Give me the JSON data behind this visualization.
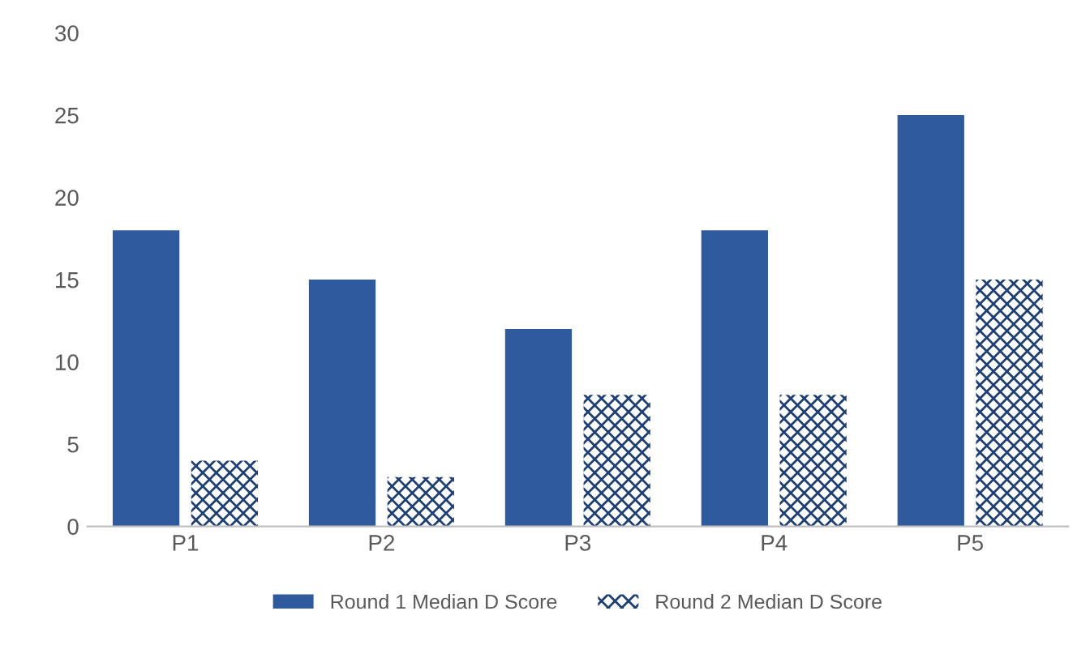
{
  "chart_data": {
    "type": "bar",
    "categories": [
      "P1",
      "P2",
      "P3",
      "P4",
      "P5"
    ],
    "series": [
      {
        "name": "Round 1 Median D Score",
        "color": "#2f5b9e",
        "values": [
          18,
          15,
          12,
          18,
          25
        ]
      },
      {
        "name": "Round 2 Median D Score",
        "color": "#1f3f73",
        "values": [
          4,
          3,
          8,
          8,
          15
        ]
      }
    ],
    "ylim": [
      0,
      30
    ],
    "yticks": [
      0,
      5,
      10,
      15,
      20,
      25,
      30
    ],
    "grid": false,
    "legend": "bottom"
  }
}
